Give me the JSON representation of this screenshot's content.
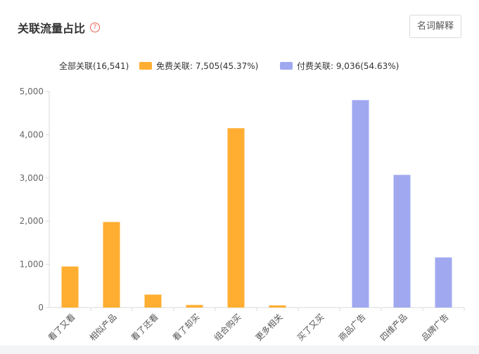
{
  "header": {
    "title": "关联流量占比",
    "help_icon": "question-circle-icon",
    "glossary_label": "名词解释"
  },
  "legend": {
    "total": "全部关联(16,541)",
    "free": "免费关联: 7,505(45.37%)",
    "paid": "付费关联: 9,036(54.63%)"
  },
  "colors": {
    "free": "#ffae32",
    "paid": "#a0a8f0"
  },
  "chart_data": {
    "type": "bar",
    "categories": [
      "看了又看",
      "相似产品",
      "看了还看",
      "看了却买",
      "组合购买",
      "更多相关",
      "买了又买",
      "商品广告",
      "四维产品",
      "品牌广告"
    ],
    "series": [
      {
        "name": "免费关联",
        "values": [
          950,
          1980,
          300,
          60,
          4150,
          50,
          0,
          null,
          null,
          null
        ]
      },
      {
        "name": "付费关联",
        "values": [
          null,
          null,
          null,
          null,
          null,
          null,
          null,
          4800,
          3070,
          1160
        ]
      }
    ],
    "ylim": [
      0,
      5000
    ],
    "yticks": [
      "0",
      "1,000",
      "2,000",
      "3,000",
      "4,000",
      "5,000"
    ],
    "ytick_values": [
      0,
      1000,
      2000,
      3000,
      4000,
      5000
    ],
    "grid": false,
    "legend_position": "top"
  }
}
